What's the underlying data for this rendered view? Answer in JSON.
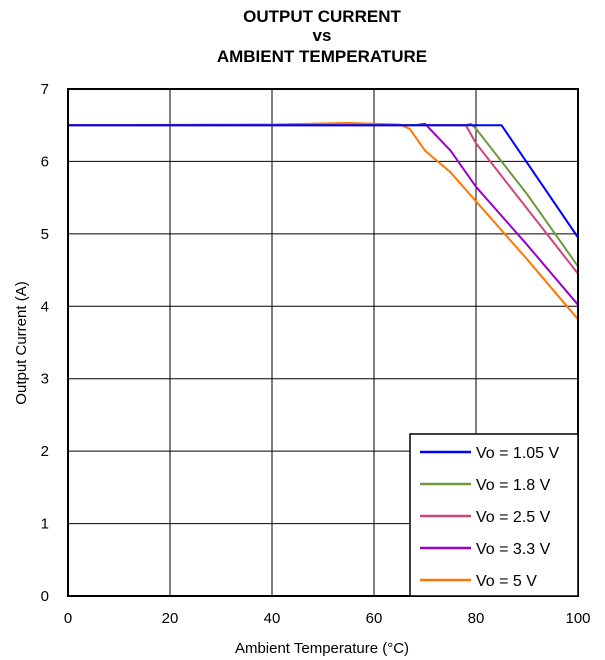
{
  "chart_data": {
    "type": "line",
    "title_lines": [
      "OUTPUT CURRENT",
      "vs",
      "AMBIENT TEMPERATURE"
    ],
    "xlabel": "Ambient Temperature (°C)",
    "ylabel": "Output Current (A)",
    "xlim": [
      0,
      100
    ],
    "ylim": [
      0,
      7
    ],
    "xticks": [
      0,
      20,
      40,
      60,
      80,
      100
    ],
    "yticks": [
      0,
      1,
      2,
      3,
      4,
      5,
      6,
      7
    ],
    "grid": true,
    "legend_position": "bottom-right",
    "series": [
      {
        "name": "Vo = 1.05 V",
        "color": "#0000ff",
        "x": [
          0,
          60,
          85,
          100
        ],
        "y": [
          6.5,
          6.5,
          6.5,
          4.95
        ]
      },
      {
        "name": "Vo = 1.8 V",
        "color": "#6e9a3c",
        "x": [
          0,
          40,
          60,
          78,
          79,
          80,
          90,
          100
        ],
        "y": [
          6.5,
          6.5,
          6.5,
          6.5,
          6.52,
          6.45,
          5.55,
          4.55
        ]
      },
      {
        "name": "Vo = 2.5 V",
        "color": "#d0467a",
        "x": [
          0,
          40,
          60,
          76,
          78,
          80,
          90,
          100
        ],
        "y": [
          6.5,
          6.5,
          6.5,
          6.5,
          6.5,
          6.25,
          5.35,
          4.45
        ]
      },
      {
        "name": "Vo = 3.3 V",
        "color": "#9900cc",
        "x": [
          0,
          40,
          60,
          68,
          70,
          75,
          80,
          90,
          100
        ],
        "y": [
          6.5,
          6.5,
          6.5,
          6.5,
          6.52,
          6.15,
          5.65,
          4.85,
          4.02
        ]
      },
      {
        "name": "Vo = 5 V",
        "color": "#ff7700",
        "x": [
          0,
          40,
          55,
          65,
          67,
          69,
          70,
          75,
          80,
          90,
          100
        ],
        "y": [
          6.5,
          6.51,
          6.53,
          6.51,
          6.45,
          6.25,
          6.15,
          5.85,
          5.45,
          4.65,
          3.82
        ]
      }
    ]
  }
}
